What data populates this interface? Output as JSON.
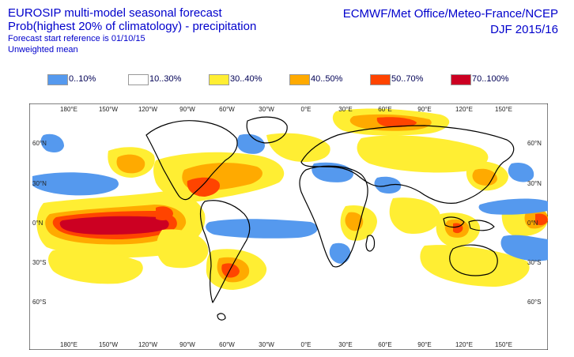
{
  "title": {
    "line1": "EUROSIP multi-model seasonal forecast",
    "line2": "Prob(highest 20% of climatology) - precipitation",
    "line3": "Forecast start reference is 01/10/15",
    "line4": "Unweighted mean"
  },
  "header_right": {
    "line1": "ECMWF/Met Office/Meteo-France/NCEP",
    "line2": "DJF 2015/16"
  },
  "legend": [
    {
      "label": "0..10%",
      "color": "#5599ee"
    },
    {
      "label": "10..30%",
      "color": "#ffffff"
    },
    {
      "label": "30..40%",
      "color": "#ffee33"
    },
    {
      "label": "40..50%",
      "color": "#ffaa00"
    },
    {
      "label": "50..70%",
      "color": "#ff4400"
    },
    {
      "label": "70..100%",
      "color": "#cc0022"
    }
  ],
  "map": {
    "lon_labels": [
      "180°E",
      "150°W",
      "120°W",
      "90°W",
      "60°W",
      "30°W",
      "0°E",
      "30°E",
      "60°E",
      "90°E",
      "120°E",
      "150°E"
    ],
    "lat_labels": [
      "60°N",
      "30°N",
      "0°N",
      "30°S",
      "60°S"
    ]
  }
}
